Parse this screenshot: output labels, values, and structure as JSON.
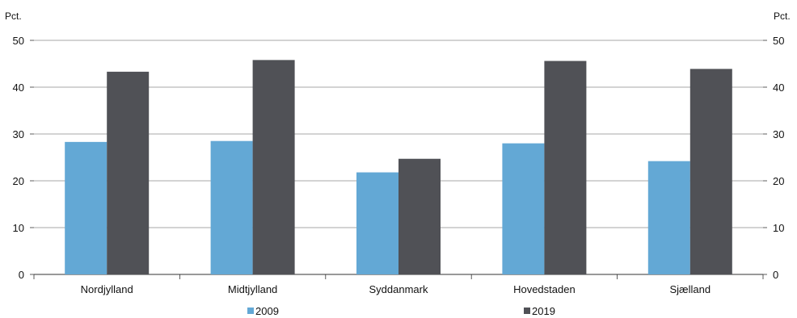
{
  "chart_data": {
    "type": "bar",
    "categories": [
      "Nordjylland",
      "Midtjylland",
      "Syddanmark",
      "Hovedstaden",
      "Sjælland"
    ],
    "series": [
      {
        "name": "2009",
        "values": [
          28.3,
          28.5,
          21.8,
          28.0,
          24.2
        ],
        "color": "#63a8d5"
      },
      {
        "name": "2019",
        "values": [
          43.3,
          45.8,
          24.7,
          45.6,
          43.9
        ],
        "color": "#505156"
      }
    ],
    "y_unit_left": "Pct.",
    "y_unit_right": "Pct.",
    "ylim": [
      0,
      50
    ],
    "yticks": [
      "0",
      "10",
      "20",
      "30",
      "40",
      "50"
    ],
    "grid": true,
    "legend_position": "bottom"
  }
}
